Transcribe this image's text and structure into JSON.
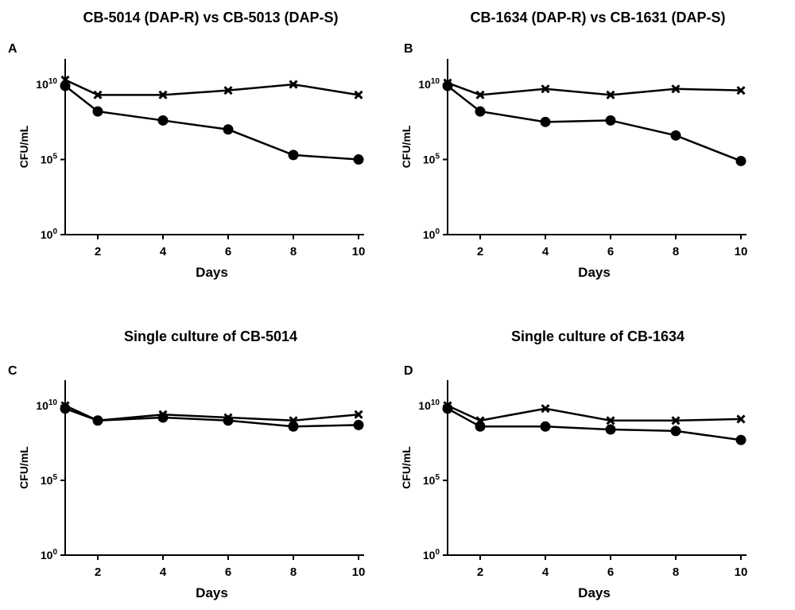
{
  "chart_data": [
    {
      "type": "line",
      "panel_label": "A",
      "title": "CB-5014 (DAP-R) vs CB-5013 (DAP-S)",
      "xlabel": "Days",
      "ylabel": "CFU/mL",
      "x": [
        1,
        2,
        4,
        6,
        8,
        10
      ],
      "xlim": [
        1,
        10
      ],
      "xticks": [
        "2",
        "4",
        "6",
        "8",
        "10"
      ],
      "yscale": "log10",
      "ylim_log10": [
        0,
        11.7
      ],
      "yticks": [
        {
          "base": "10",
          "exp": "0"
        },
        {
          "base": "10",
          "exp": "5"
        },
        {
          "base": "10",
          "exp": "10"
        }
      ],
      "series": [
        {
          "name": "DAP-R (x)",
          "marker": "x",
          "log10_values": [
            10.3,
            9.3,
            9.3,
            9.6,
            10.0,
            9.3
          ]
        },
        {
          "name": "DAP-S (circle)",
          "marker": "circle",
          "log10_values": [
            9.9,
            8.2,
            7.6,
            7.0,
            5.3,
            5.0
          ]
        }
      ]
    },
    {
      "type": "line",
      "panel_label": "B",
      "title": "CB-1634 (DAP-R) vs CB-1631 (DAP-S)",
      "xlabel": "Days",
      "ylabel": "CFU/mL",
      "x": [
        1,
        2,
        4,
        6,
        8,
        10
      ],
      "xlim": [
        1,
        10
      ],
      "xticks": [
        "2",
        "4",
        "6",
        "8",
        "10"
      ],
      "yscale": "log10",
      "ylim_log10": [
        0,
        11.7
      ],
      "yticks": [
        {
          "base": "10",
          "exp": "0"
        },
        {
          "base": "10",
          "exp": "5"
        },
        {
          "base": "10",
          "exp": "10"
        }
      ],
      "series": [
        {
          "name": "DAP-R (x)",
          "marker": "x",
          "log10_values": [
            10.1,
            9.3,
            9.7,
            9.3,
            9.7,
            9.6
          ]
        },
        {
          "name": "DAP-S (circle)",
          "marker": "circle",
          "log10_values": [
            9.9,
            8.2,
            7.5,
            7.6,
            6.6,
            4.9
          ]
        }
      ]
    },
    {
      "type": "line",
      "panel_label": "C",
      "title": "Single culture of CB-5014",
      "xlabel": "Days",
      "ylabel": "CFU/mL",
      "x": [
        1,
        2,
        4,
        6,
        8,
        10
      ],
      "xlim": [
        1,
        10
      ],
      "xticks": [
        "2",
        "4",
        "6",
        "8",
        "10"
      ],
      "yscale": "log10",
      "ylim_log10": [
        0,
        11.7
      ],
      "yticks": [
        {
          "base": "10",
          "exp": "0"
        },
        {
          "base": "10",
          "exp": "5"
        },
        {
          "base": "10",
          "exp": "10"
        }
      ],
      "series": [
        {
          "name": "x marker",
          "marker": "x",
          "log10_values": [
            10.0,
            9.0,
            9.4,
            9.2,
            9.0,
            9.4
          ]
        },
        {
          "name": "circle marker",
          "marker": "circle",
          "log10_values": [
            9.8,
            9.0,
            9.2,
            9.0,
            8.6,
            8.7
          ]
        }
      ]
    },
    {
      "type": "line",
      "panel_label": "D",
      "title": "Single culture of CB-1634",
      "xlabel": "Days",
      "ylabel": "CFU/mL",
      "x": [
        1,
        2,
        4,
        6,
        8,
        10
      ],
      "xlim": [
        1,
        10
      ],
      "xticks": [
        "2",
        "4",
        "6",
        "8",
        "10"
      ],
      "yscale": "log10",
      "ylim_log10": [
        0,
        11.7
      ],
      "yticks": [
        {
          "base": "10",
          "exp": "0"
        },
        {
          "base": "10",
          "exp": "5"
        },
        {
          "base": "10",
          "exp": "10"
        }
      ],
      "series": [
        {
          "name": "x marker",
          "marker": "x",
          "log10_values": [
            10.0,
            9.0,
            9.8,
            9.0,
            9.0,
            9.1
          ]
        },
        {
          "name": "circle marker",
          "marker": "circle",
          "log10_values": [
            9.8,
            8.6,
            8.6,
            8.4,
            8.3,
            7.7
          ]
        }
      ]
    }
  ],
  "colors": {
    "ink": "#000000",
    "background": "#ffffff"
  }
}
